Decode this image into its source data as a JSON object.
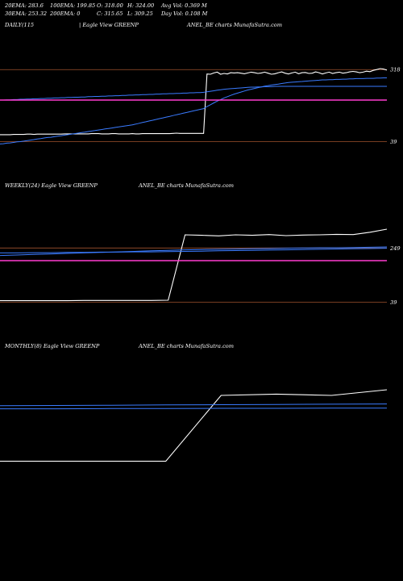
{
  "header": {
    "row1": [
      "20EMA: 283.6",
      "100EMA: 199.85",
      "O: 318.00",
      "H: 324.00",
      "Avg Vol: 0.369 M"
    ],
    "row2": [
      "30EMA: 253.32",
      "200EMA: 0",
      "C: 315.65",
      "L: 309.25",
      "Day Vol: 0.108 M"
    ]
  },
  "colors": {
    "price": "#ffffff",
    "ema_blue": "#3a7bff",
    "ema_pink": "#ff3ccf",
    "level_brown": "#a0522d"
  },
  "chart_data": [
    {
      "type": "line",
      "panel": "daily",
      "title": "DAILY(115",
      "title_mid": "| Eagle   View  GREENP",
      "title_right": "ANEL_BE charts MunafaSutra.com",
      "y_tick_labels": [
        "318",
        "39"
      ],
      "ylim": [
        0,
        400
      ],
      "series": [
        {
          "key": "price",
          "values": [
            66,
            66,
            66,
            66,
            67,
            67,
            67,
            67,
            68,
            68,
            67,
            68,
            68,
            68,
            68,
            68,
            68,
            68,
            68,
            69,
            69,
            69,
            69,
            69,
            69,
            69,
            69,
            70,
            70,
            70,
            69,
            69,
            69,
            70,
            70,
            69,
            69,
            69,
            69,
            70,
            69,
            69,
            70,
            70,
            70,
            70,
            70,
            70,
            70,
            70,
            70,
            71,
            72,
            71,
            71,
            71,
            71,
            71,
            71,
            71,
            71,
            301,
            300,
            305,
            308,
            300,
            303,
            301,
            306,
            305,
            306,
            304,
            302,
            305,
            308,
            306,
            303,
            305,
            308,
            304,
            300,
            302,
            306,
            309,
            304,
            301,
            305,
            308,
            302,
            306,
            307,
            303,
            304,
            309,
            306,
            301,
            305,
            308,
            303,
            306,
            308,
            304,
            306,
            309,
            311,
            309,
            306,
            308,
            312,
            310,
            315,
            318,
            322,
            320,
            316
          ]
        },
        {
          "key": "ema_blue_1",
          "values": [
            30,
            31,
            33,
            34,
            36,
            38,
            39,
            41,
            43,
            45,
            47,
            49,
            51,
            53,
            55,
            56,
            58,
            60,
            62,
            64,
            66,
            68,
            70,
            72,
            74,
            76,
            78,
            80,
            82,
            84,
            86,
            88,
            90,
            92,
            94,
            96,
            98,
            100,
            102,
            104,
            107,
            110,
            113,
            116,
            119,
            122,
            125,
            128,
            131,
            134,
            137,
            140,
            143,
            146,
            149,
            152,
            155,
            158,
            161,
            164,
            167,
            175,
            182,
            189,
            196,
            202,
            208,
            213,
            218,
            223,
            227,
            231,
            235,
            239,
            242,
            245,
            248,
            251,
            254,
            256,
            258,
            260,
            262,
            264,
            266,
            268,
            269,
            270,
            271,
            272,
            273,
            274,
            275,
            276,
            277,
            278,
            278,
            279,
            279,
            280,
            280,
            281,
            281,
            282,
            282,
            283,
            283,
            283,
            284,
            284,
            284,
            285,
            285,
            286,
            286
          ]
        },
        {
          "key": "ema_blue_2",
          "values": [
            200,
            200,
            201,
            201,
            202,
            202,
            203,
            203,
            204,
            204,
            205,
            205,
            206,
            206,
            207,
            207,
            208,
            208,
            209,
            209,
            210,
            210,
            211,
            211,
            212,
            212,
            213,
            213,
            214,
            214,
            215,
            215,
            216,
            216,
            217,
            217,
            218,
            218,
            219,
            219,
            220,
            220,
            221,
            221,
            222,
            222,
            223,
            223,
            224,
            224,
            225,
            225,
            226,
            226,
            227,
            227,
            228,
            228,
            229,
            229,
            230,
            232,
            234,
            236,
            238,
            240,
            242,
            243,
            244,
            245,
            246,
            247,
            248,
            249,
            250,
            250,
            251,
            251,
            252,
            252,
            252,
            253,
            253,
            253,
            253,
            253,
            253,
            253,
            253,
            253,
            253,
            253,
            253,
            253,
            253,
            253,
            253,
            253,
            253,
            253,
            253,
            253,
            253,
            253,
            253,
            253,
            253,
            253,
            253,
            253,
            253,
            253,
            253,
            253,
            253
          ]
        },
        {
          "key": "ema_pink",
          "values": [
            199.85
          ]
        }
      ],
      "levels": [
        318,
        39
      ]
    },
    {
      "type": "line",
      "panel": "weekly",
      "title": "WEEKLY(24) Eagle  View  GREENP",
      "title_right": "ANEL_BE charts MunafaSutra.com",
      "y_tick_labels": [
        "249",
        "39"
      ],
      "ylim": [
        0,
        400
      ],
      "series": [
        {
          "key": "price",
          "values": [
            45,
            45,
            45,
            45,
            45,
            46,
            46,
            46,
            46,
            46,
            47,
            300,
            298,
            296,
            300,
            298,
            301,
            297,
            299,
            300,
            302,
            301,
            310,
            322
          ]
        },
        {
          "key": "ema_blue_1",
          "values": [
            220,
            222,
            224,
            226,
            228,
            230,
            232,
            234,
            236,
            238,
            240,
            242,
            243,
            244,
            245,
            246,
            247,
            248,
            249,
            250,
            250,
            251,
            252,
            253
          ]
        },
        {
          "key": "ema_blue_2",
          "values": [
            230,
            230,
            231,
            231,
            232,
            232,
            233,
            233,
            234,
            234,
            235,
            236,
            237,
            238,
            239,
            240,
            241,
            242,
            243,
            244,
            245,
            246,
            247,
            248
          ]
        },
        {
          "key": "ema_pink",
          "values": [
            199.85
          ]
        }
      ],
      "levels": [
        249,
        39
      ]
    },
    {
      "type": "line",
      "panel": "monthly",
      "title": "MONTHLY(8) Eagle  View  GREENP",
      "title_right": "ANEL_BE charts MunafaSutra.com",
      "y_tick_labels": [],
      "ylim": [
        0,
        400
      ],
      "series": [
        {
          "key": "price",
          "values": [
            45,
            45,
            45,
            45,
            300,
            305,
            300,
            322
          ]
        },
        {
          "key": "ema_blue_1",
          "values": [
            260,
            261,
            262,
            263,
            264,
            265,
            266,
            267
          ]
        },
        {
          "key": "ema_blue_2",
          "values": [
            248,
            248,
            249,
            249,
            250,
            250,
            251,
            251
          ]
        }
      ],
      "levels": []
    }
  ]
}
